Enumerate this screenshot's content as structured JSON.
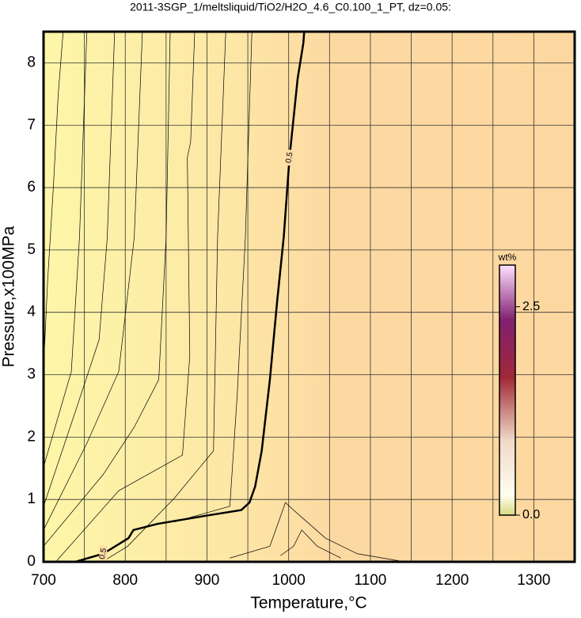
{
  "chart_data": {
    "type": "contour",
    "title": "2011-3SGP_1/meltsliquid/TiO2/H2O_4.6_C0.100_1_PT, dz=0.05:",
    "x_label": "Temperature,°C",
    "y_label": "Pressure,x100MPa",
    "xlim": [
      700,
      1350
    ],
    "ylim": [
      0,
      8.5
    ],
    "xticks": [
      700,
      800,
      900,
      1000,
      1100,
      1200,
      1300
    ],
    "xminor": [
      750,
      850,
      950,
      1050,
      1150,
      1250
    ],
    "yticks": [
      0,
      1,
      2,
      3,
      4,
      5,
      6,
      7,
      8
    ],
    "grid": true,
    "colorbar": {
      "label": "wt%",
      "clim": [
        0,
        3
      ],
      "ticks": [
        {
          "value": 0,
          "label": "0.0"
        },
        {
          "value": 2.5,
          "label": "2.5"
        }
      ]
    },
    "contours": [
      {
        "level": 0.5,
        "bold": true,
        "label_at": [
          1,
          13
        ],
        "x": [
          739,
          773,
          804,
          810,
          840,
          899,
          942,
          952,
          959,
          967,
          977,
          986,
          994,
          1001,
          1011,
          1018,
          1019
        ],
        "y": [
          0,
          0.13,
          0.38,
          0.51,
          0.61,
          0.74,
          0.83,
          0.95,
          1.21,
          1.78,
          2.92,
          4.19,
          5.21,
          6.48,
          7.75,
          8.32,
          8.5
        ]
      },
      {
        "x": [
          700,
          705,
          712,
          718,
          724
        ],
        "y": [
          3.1,
          4.5,
          6,
          7.5,
          8.5
        ]
      },
      {
        "x": [
          700,
          734,
          744,
          753
        ],
        "y": [
          1.52,
          3.05,
          5.2,
          8.5
        ]
      },
      {
        "x": [
          700,
          739,
          768,
          778,
          787
        ],
        "y": [
          0.89,
          2.41,
          3.56,
          5.2,
          8.5
        ]
      },
      {
        "x": [
          700,
          753,
          792,
          811,
          821
        ],
        "y": [
          0.51,
          1.9,
          3.05,
          5.2,
          8.5
        ]
      },
      {
        "x": [
          700,
          773,
          811,
          841,
          850,
          855
        ],
        "y": [
          0.25,
          1.4,
          2.16,
          2.92,
          5.2,
          8.5
        ]
      },
      {
        "x": [
          715,
          792,
          870,
          879,
          876,
          880,
          885
        ],
        "y": [
          0,
          1.14,
          1.71,
          3.3,
          6.48,
          6.73,
          8.5
        ]
      },
      {
        "x": [
          772,
          803,
          860,
          908,
          913,
          923
        ],
        "y": [
          0,
          0.25,
          1.02,
          1.78,
          5.2,
          8.5
        ]
      },
      {
        "x": [
          860,
          928,
          937,
          947,
          955
        ],
        "y": [
          0.64,
          0.89,
          2.67,
          5.2,
          8.5
        ]
      },
      {
        "x": [
          928,
          977,
          996,
          1006,
          1045,
          1084,
          1142
        ],
        "y": [
          0.06,
          0.25,
          0.95,
          0.83,
          0.38,
          0.13,
          0
        ]
      },
      {
        "x": [
          990,
          1006,
          1016,
          1035,
          1064
        ],
        "y": [
          0.1,
          0.25,
          0.51,
          0.25,
          0.06
        ]
      }
    ]
  }
}
